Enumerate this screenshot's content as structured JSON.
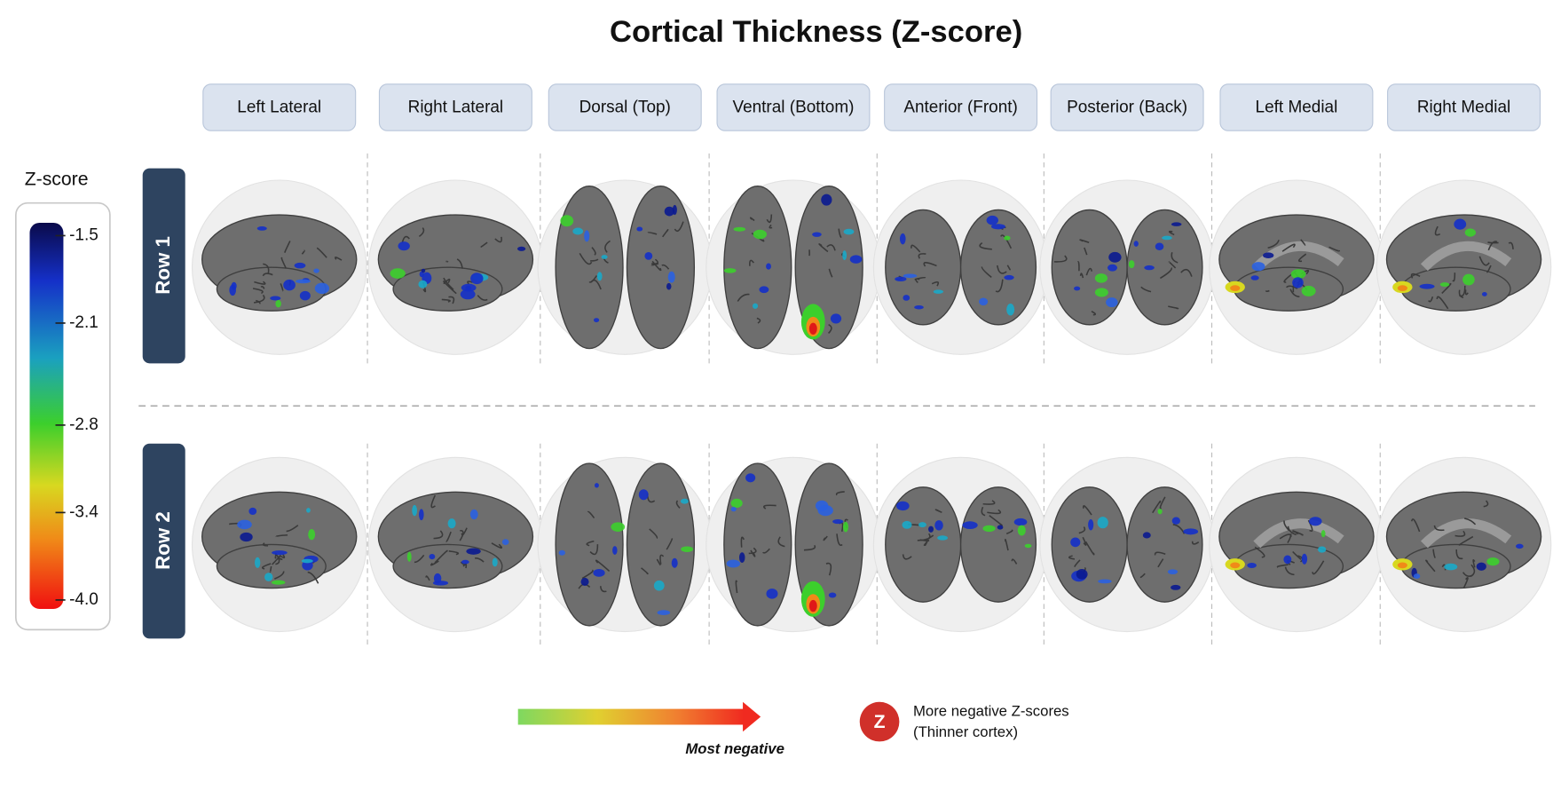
{
  "title": "Cortical Thickness (Z-score)",
  "views": [
    "Left Lateral",
    "Right Lateral",
    "Dorsal (Top)",
    "Ventral (Bottom)",
    "Anterior (Front)",
    "Posterior (Back)",
    "Left Medial",
    "Right Medial"
  ],
  "rows": [
    "Row 1",
    "Row 2"
  ],
  "colorbar": {
    "label": "Z-score",
    "range": [
      -1.5,
      -4
    ],
    "ticks": [
      -1.5,
      -2.1,
      -2.8,
      -3.4,
      {
        "value": -4,
        "label": "-4.0"
      }
    ]
  },
  "legend": {
    "arrow_label": "Most negative",
    "badge": "Z",
    "lines": [
      "More negative Z-scores",
      "(Thinner cortex)"
    ]
  }
}
